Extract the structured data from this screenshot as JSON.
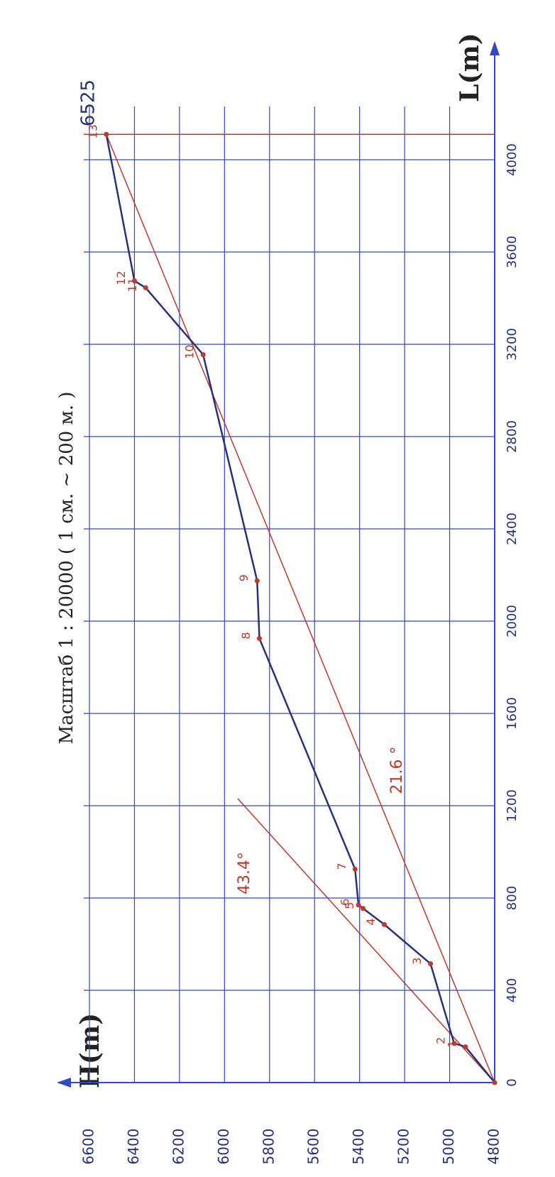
{
  "chart_data": {
    "type": "line",
    "title": "Масштаб 1 : 20000 ( 1 см. ~ 200 м. )",
    "x_label": "L(m)",
    "y_label": "H(m)",
    "x": [
      0,
      155,
      170,
      515,
      685,
      755,
      770,
      925,
      1925,
      2175,
      3155,
      3445,
      3475,
      4110
    ],
    "values": [
      4800,
      4930,
      4980,
      5085,
      5290,
      5385,
      5405,
      5420,
      5845,
      5855,
      6095,
      6350,
      6400,
      6525
    ],
    "point_labels": [
      null,
      "1",
      "2",
      "3",
      "4",
      "5",
      "6",
      "7",
      "8",
      "9",
      "10",
      "11",
      "12",
      "13"
    ],
    "color": "#27317a",
    "grid_color": "#3447c4",
    "accent_color": "#c0392b",
    "xlim": [
      0,
      4400
    ],
    "xticks": [
      0,
      400,
      800,
      1200,
      1600,
      2000,
      2400,
      2800,
      3200,
      3600,
      4000
    ],
    "ylim": [
      4800,
      6600
    ],
    "yticks": [
      4800,
      5000,
      5200,
      5400,
      5600,
      5800,
      6000,
      6200,
      6400,
      6600
    ],
    "grid": true,
    "annotations": [
      "6525",
      "43.4°",
      "21.6 °"
    ]
  }
}
